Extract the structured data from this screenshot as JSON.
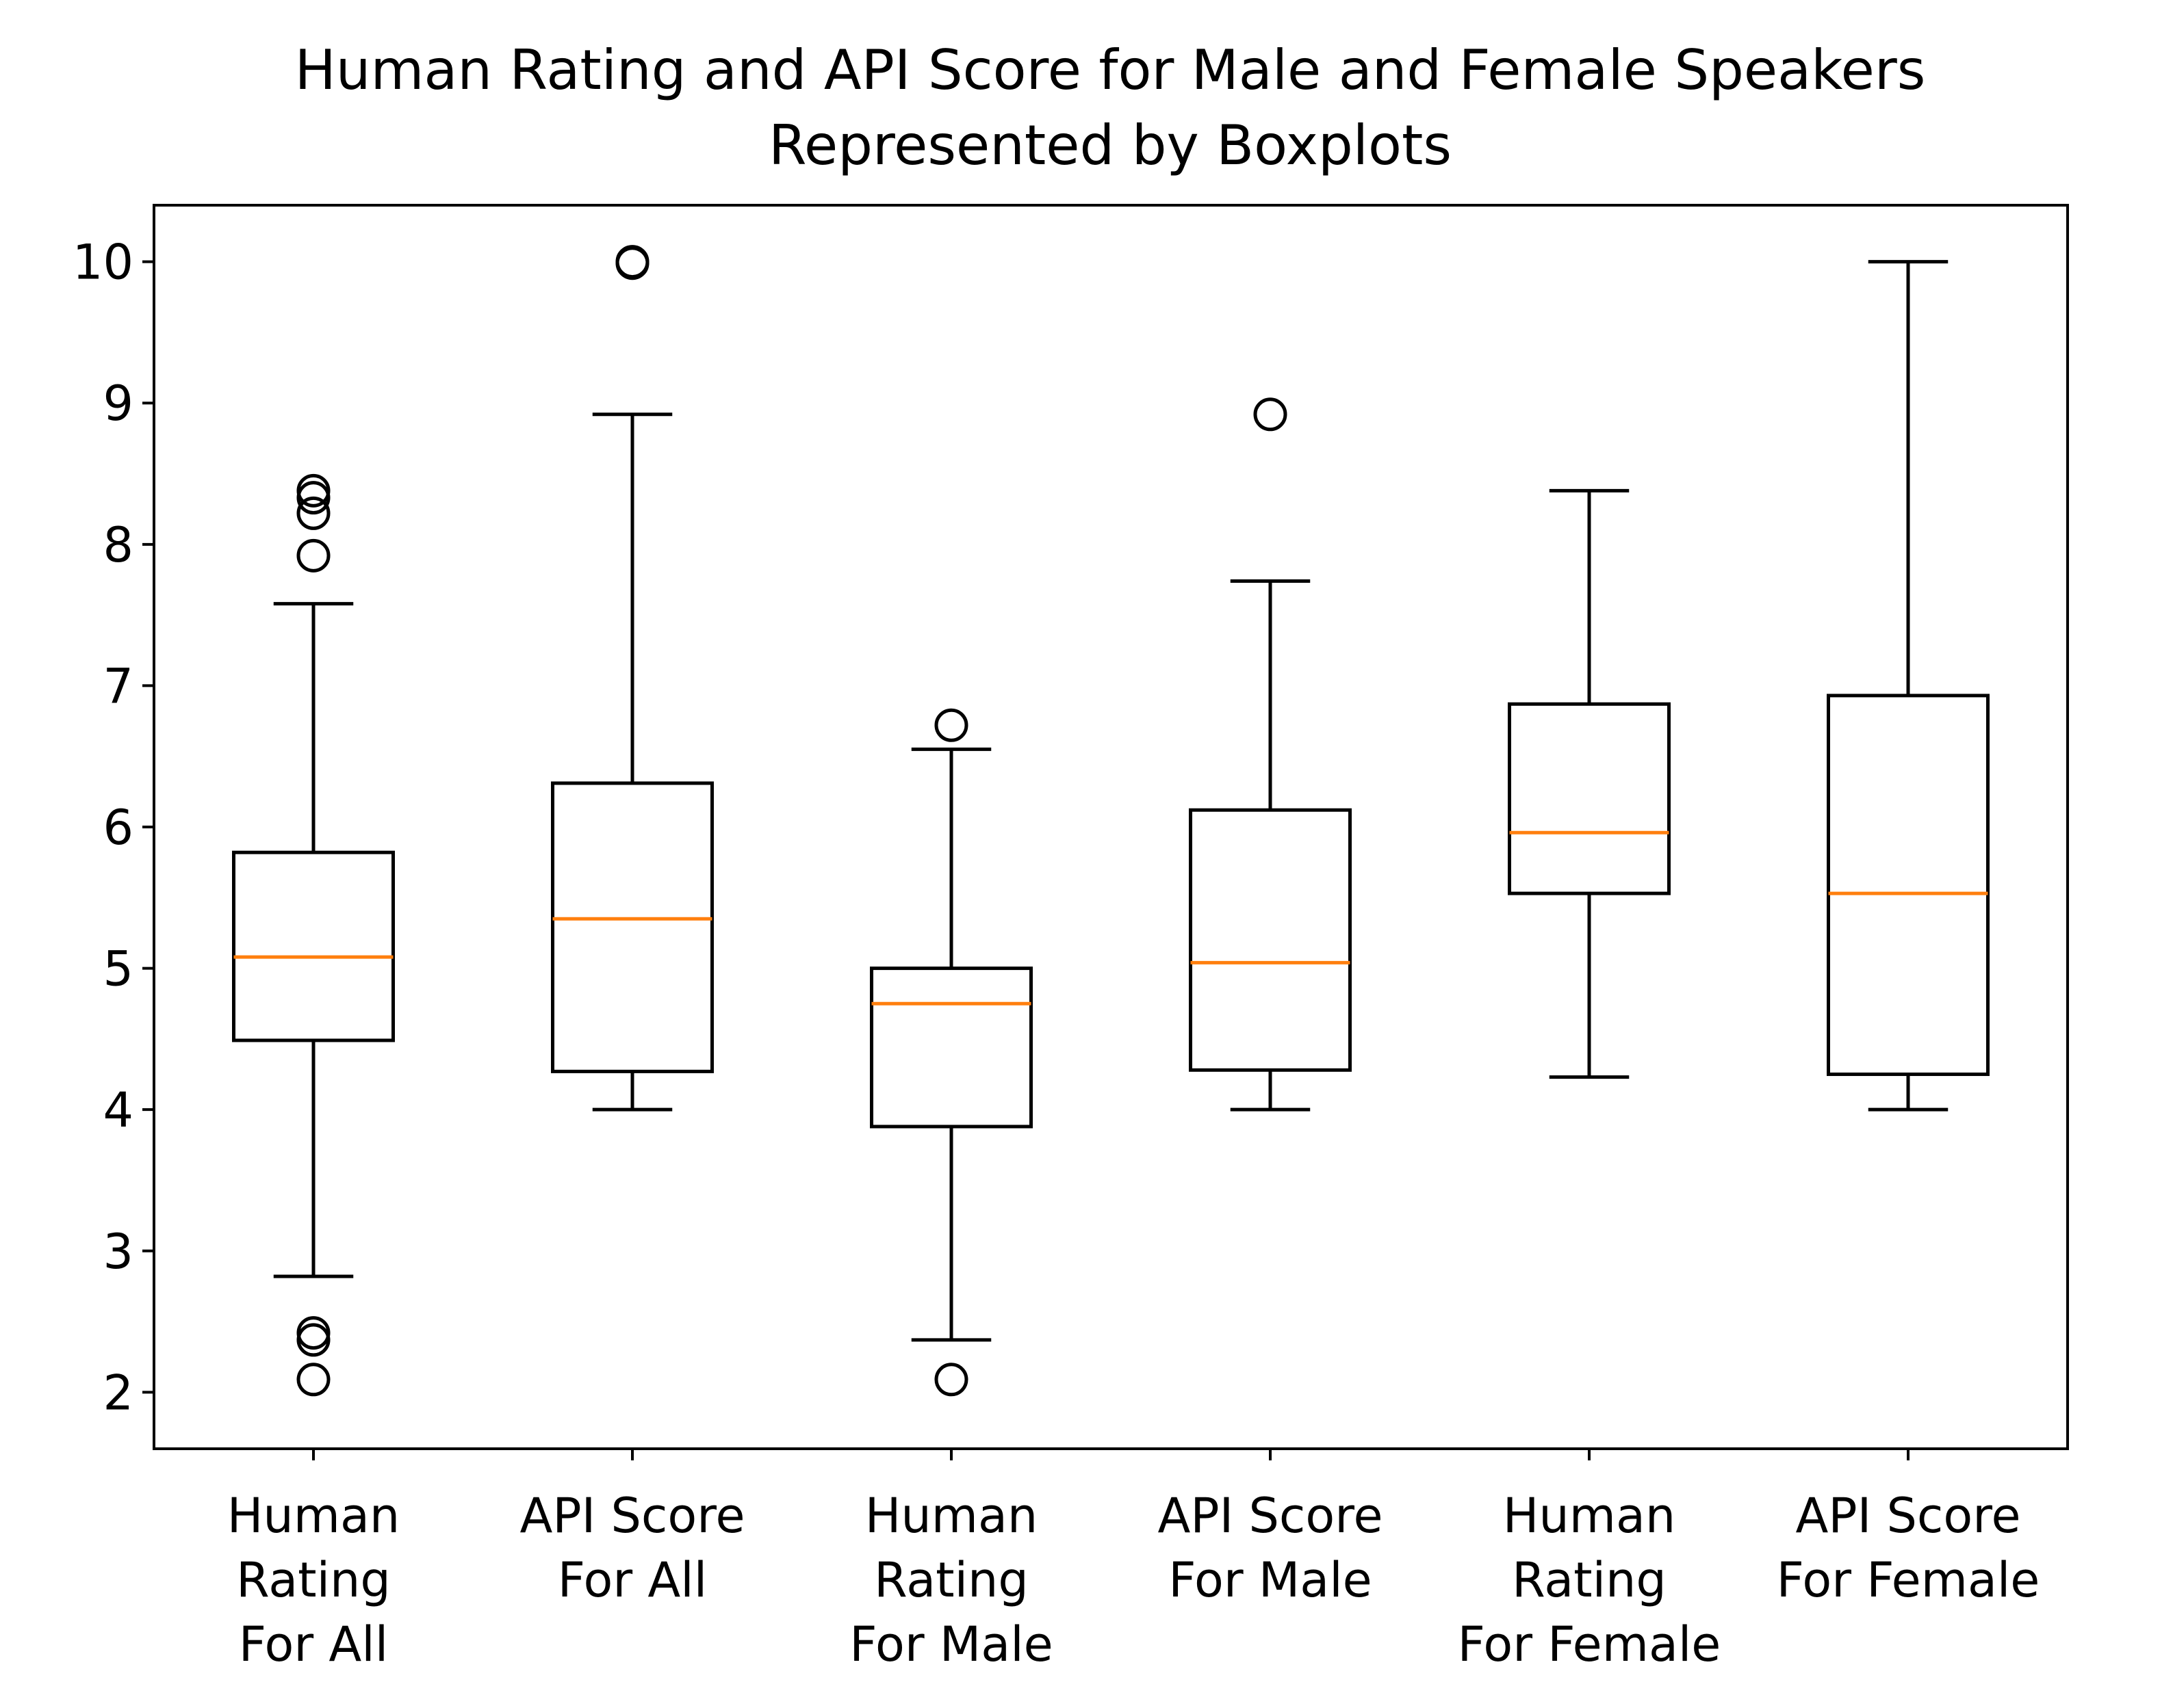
{
  "chart_data": {
    "type": "boxplot",
    "title": [
      "Human Rating and API Score for Male and Female Speakers",
      "Represented by Boxplots"
    ],
    "xlabel": "",
    "ylabel": "",
    "ylim": [
      1.6,
      10.4
    ],
    "yticks": [
      2,
      3,
      4,
      5,
      6,
      7,
      8,
      9,
      10
    ],
    "grid": false,
    "colors": {
      "box": "#000000",
      "median": "#ff7f0e",
      "flier": "#000000"
    },
    "categories": [
      [
        "Human",
        "Rating",
        "For All"
      ],
      [
        "API Score",
        "For All"
      ],
      [
        "Human",
        "Rating",
        "For Male"
      ],
      [
        "API Score",
        "For Male"
      ],
      [
        "Human",
        "Rating",
        "For Female"
      ],
      [
        "API Score",
        "For Female"
      ]
    ],
    "boxes": [
      {
        "whisker_low": 2.82,
        "q1": 4.49,
        "median": 5.08,
        "q3": 5.82,
        "whisker_high": 7.58,
        "fliers": [
          8.38,
          8.33,
          8.22,
          7.92,
          2.42,
          2.37,
          2.09
        ]
      },
      {
        "whisker_low": 4.0,
        "q1": 4.27,
        "median": 5.35,
        "q3": 6.31,
        "whisker_high": 8.92,
        "fliers": [
          10.0,
          9.99
        ]
      },
      {
        "whisker_low": 2.37,
        "q1": 3.88,
        "median": 4.75,
        "q3": 5.0,
        "whisker_high": 6.55,
        "fliers": [
          6.72,
          2.09
        ]
      },
      {
        "whisker_low": 4.0,
        "q1": 4.28,
        "median": 5.04,
        "q3": 6.12,
        "whisker_high": 7.74,
        "fliers": [
          8.92
        ]
      },
      {
        "whisker_low": 4.23,
        "q1": 5.53,
        "median": 5.96,
        "q3": 6.87,
        "whisker_high": 8.38,
        "fliers": []
      },
      {
        "whisker_low": 4.0,
        "q1": 4.25,
        "median": 5.53,
        "q3": 6.93,
        "whisker_high": 10.0,
        "fliers": []
      }
    ]
  }
}
